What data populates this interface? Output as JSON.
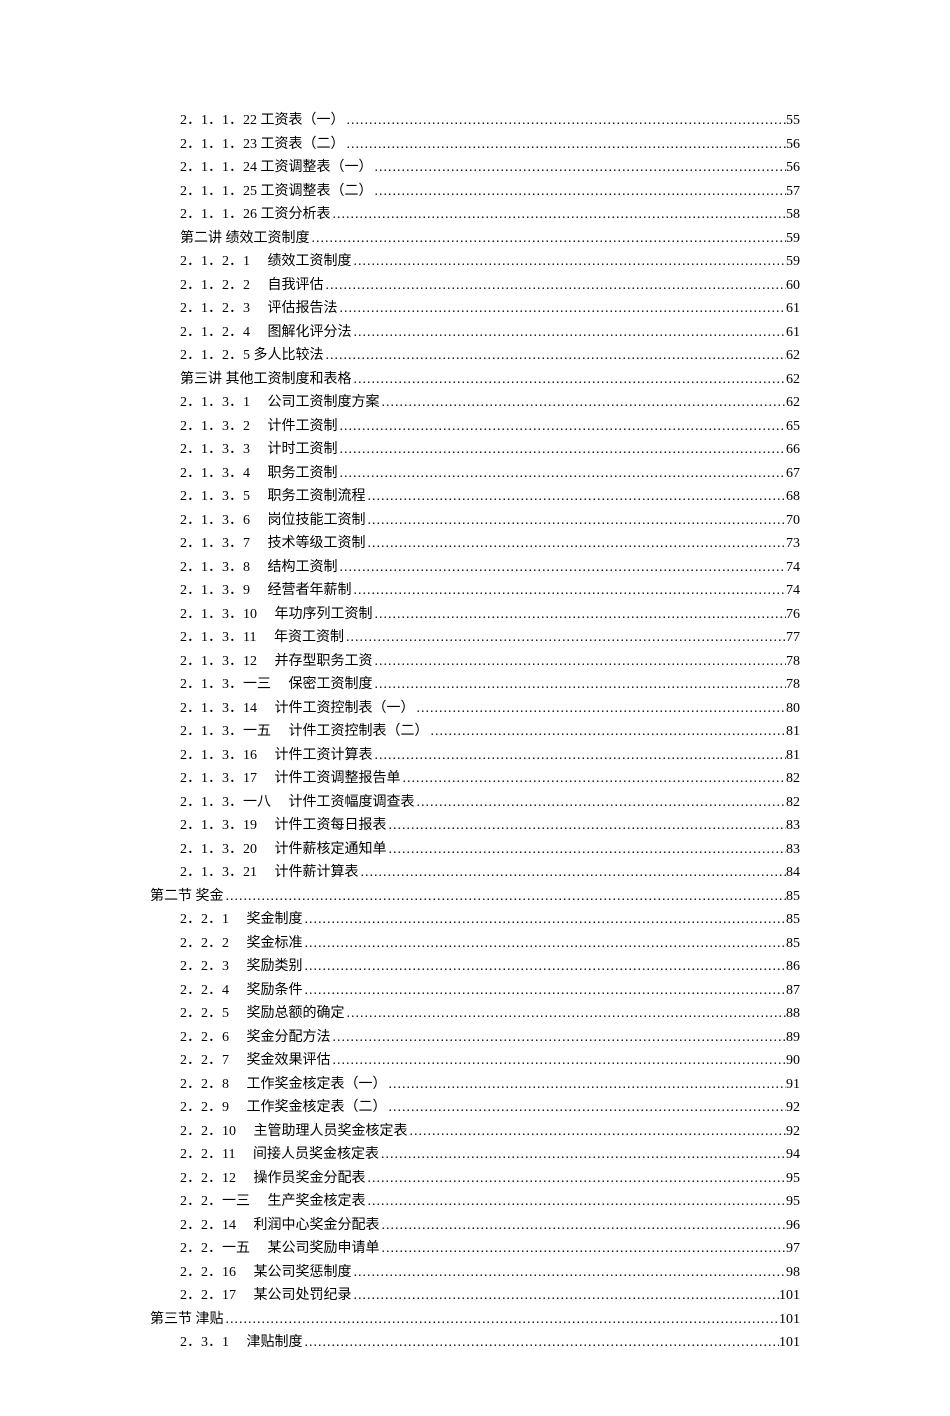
{
  "toc": {
    "entries": [
      {
        "num": "2．1．1．22",
        "title": "工资表（一）",
        "page": "55",
        "indent": 2
      },
      {
        "num": "2．1．1．23",
        "title": "工资表（二）",
        "page": "56",
        "indent": 2
      },
      {
        "num": "2．1．1．24",
        "title": "工资调整表（一）",
        "page": "56",
        "indent": 2
      },
      {
        "num": "2．1．1．25",
        "title": "工资调整表（二）",
        "page": "57",
        "indent": 2
      },
      {
        "num": "2．1．1．26",
        "title": "工资分析表",
        "page": "58",
        "indent": 2
      },
      {
        "num": "第二讲",
        "title": "绩效工资制度",
        "page": "59",
        "indent": 2
      },
      {
        "num": "2．1．2．1",
        "title": "　绩效工资制度",
        "page": "59",
        "indent": 2
      },
      {
        "num": "2．1．2．2",
        "title": "　自我评估",
        "page": "60",
        "indent": 2
      },
      {
        "num": "2．1．2．3",
        "title": "　评估报告法",
        "page": "61",
        "indent": 2
      },
      {
        "num": "2．1．2．4",
        "title": "　图解化评分法",
        "page": "61",
        "indent": 2
      },
      {
        "num": "2．1．2．5",
        "title": "多人比较法",
        "page": "62",
        "indent": 2
      },
      {
        "num": "第三讲",
        "title": "其他工资制度和表格",
        "page": "62",
        "indent": 2
      },
      {
        "num": "2．1．3．1",
        "title": "　公司工资制度方案",
        "page": "62",
        "indent": 2
      },
      {
        "num": "2．1．3．2",
        "title": "　计件工资制",
        "page": "65",
        "indent": 2
      },
      {
        "num": "2．1．3．3",
        "title": "　计时工资制",
        "page": "66",
        "indent": 2
      },
      {
        "num": "2．1．3．4",
        "title": "　职务工资制",
        "page": "67",
        "indent": 2
      },
      {
        "num": "2．1．3．5",
        "title": "　职务工资制流程",
        "page": "68",
        "indent": 2
      },
      {
        "num": "2．1．3．6",
        "title": "　岗位技能工资制",
        "page": "70",
        "indent": 2
      },
      {
        "num": "2．1．3．7",
        "title": "　技术等级工资制",
        "page": "73",
        "indent": 2
      },
      {
        "num": "2．1．3．8",
        "title": "　结构工资制",
        "page": "74",
        "indent": 2
      },
      {
        "num": "2．1．3．9",
        "title": "　经营者年薪制",
        "page": "74",
        "indent": 2
      },
      {
        "num": "2．1．3．10",
        "title": "　年功序列工资制",
        "page": "76",
        "indent": 2
      },
      {
        "num": "2．1．3．11",
        "title": "　年资工资制",
        "page": "77",
        "indent": 2
      },
      {
        "num": "2．1．3．12",
        "title": "　并存型职务工资",
        "page": "78",
        "indent": 2
      },
      {
        "num": "2．1．3．一三",
        "title": "　保密工资制度",
        "page": "78",
        "indent": 2
      },
      {
        "num": "2．1．3．14",
        "title": "　计件工资控制表（一）",
        "page": "80",
        "indent": 2
      },
      {
        "num": "2．1．3．一五",
        "title": "　计件工资控制表（二）",
        "page": "81",
        "indent": 2
      },
      {
        "num": "2．1．3．16",
        "title": "　计件工资计算表",
        "page": "81",
        "indent": 2
      },
      {
        "num": "2．1．3．17",
        "title": "　计件工资调整报告单",
        "page": "82",
        "indent": 2
      },
      {
        "num": "2．1．3．一八",
        "title": "　计件工资幅度调查表",
        "page": "82",
        "indent": 2
      },
      {
        "num": "2．1．3．19",
        "title": "　计件工资每日报表",
        "page": "83",
        "indent": 2
      },
      {
        "num": "2．1．3．20",
        "title": "　计件薪核定通知单",
        "page": "83",
        "indent": 2
      },
      {
        "num": "2．1．3．21",
        "title": "　计件薪计算表",
        "page": "84",
        "indent": 2
      },
      {
        "num": "第二节",
        "title": "奖金",
        "page": "85",
        "indent": 0
      },
      {
        "num": "2．2．1",
        "title": "　奖金制度",
        "page": "85",
        "indent": 2
      },
      {
        "num": "2．2．2",
        "title": "　奖金标准",
        "page": "85",
        "indent": 2
      },
      {
        "num": "2．2．3",
        "title": "　奖励类别",
        "page": "86",
        "indent": 2
      },
      {
        "num": "2．2．4",
        "title": "　奖励条件",
        "page": "87",
        "indent": 2
      },
      {
        "num": "2．2．5",
        "title": "　奖励总额的确定",
        "page": "88",
        "indent": 2
      },
      {
        "num": "2．2．6",
        "title": "　奖金分配方法",
        "page": "89",
        "indent": 2
      },
      {
        "num": "2．2．7",
        "title": "　奖金效果评估",
        "page": "90",
        "indent": 2
      },
      {
        "num": "2．2．8",
        "title": "　工作奖金核定表（一）",
        "page": "91",
        "indent": 2
      },
      {
        "num": "2．2．9",
        "title": "　工作奖金核定表（二）",
        "page": "92",
        "indent": 2
      },
      {
        "num": "2．2．10",
        "title": "　主管助理人员奖金核定表",
        "page": "92",
        "indent": 2
      },
      {
        "num": "2．2．11",
        "title": "　间接人员奖金核定表",
        "page": "94",
        "indent": 2
      },
      {
        "num": "2．2．12",
        "title": "　操作员奖金分配表",
        "page": "95",
        "indent": 2
      },
      {
        "num": "2．2．一三",
        "title": "　生产奖金核定表",
        "page": "95",
        "indent": 2
      },
      {
        "num": "2．2．14",
        "title": "　利润中心奖金分配表",
        "page": "96",
        "indent": 2
      },
      {
        "num": "2．2．一五",
        "title": "　某公司奖励申请单",
        "page": "97",
        "indent": 2
      },
      {
        "num": "2．2．16",
        "title": "　某公司奖惩制度",
        "page": "98",
        "indent": 2
      },
      {
        "num": "2．2．17",
        "title": "　某公司处罚纪录",
        "page": "101",
        "indent": 2
      },
      {
        "num": "第三节",
        "title": "津贴",
        "page": "101",
        "indent": 0
      },
      {
        "num": "2．3．1",
        "title": "　津贴制度",
        "page": "101",
        "indent": 2
      }
    ]
  }
}
